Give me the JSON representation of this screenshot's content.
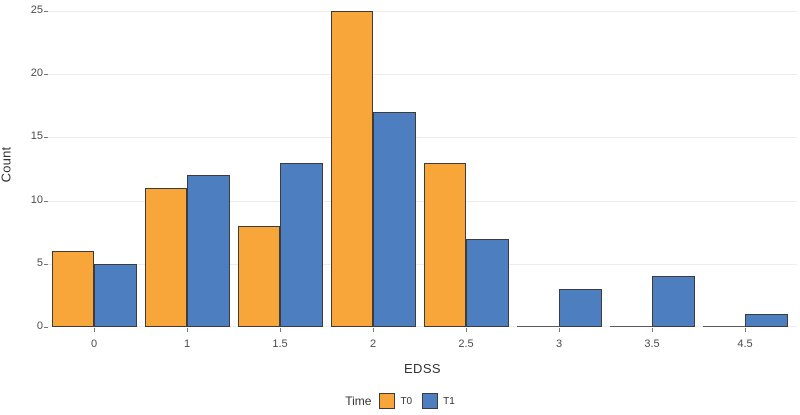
{
  "chart_data": {
    "type": "bar",
    "grouped": true,
    "title": "",
    "xlabel": "EDSS",
    "ylabel": "Count",
    "categories": [
      "0",
      "1",
      "1.5",
      "2",
      "2.5",
      "3",
      "3.5",
      "4.5"
    ],
    "series": [
      {
        "name": "T0",
        "color": "#F8A63A",
        "values": [
          6,
          11,
          8,
          25,
          13,
          0,
          0,
          0
        ]
      },
      {
        "name": "T1",
        "color": "#4D7EBF",
        "values": [
          5,
          12,
          13,
          17,
          7,
          3,
          4,
          1
        ]
      }
    ],
    "ylim": [
      0,
      25
    ],
    "yticks": [
      0,
      5,
      10,
      15,
      20,
      25
    ],
    "grid": "horizontal-major",
    "legend": {
      "title": "Time",
      "position": "bottom"
    },
    "colors": {
      "background": "#ffffff",
      "bar_border": "#3C3C3C",
      "zero_bar_line": "#5A5A5A",
      "gridline": "#EDEDED",
      "tick_mark": "#777777",
      "axis_text": "#4D4D4D",
      "axis_title": "#333333"
    }
  }
}
